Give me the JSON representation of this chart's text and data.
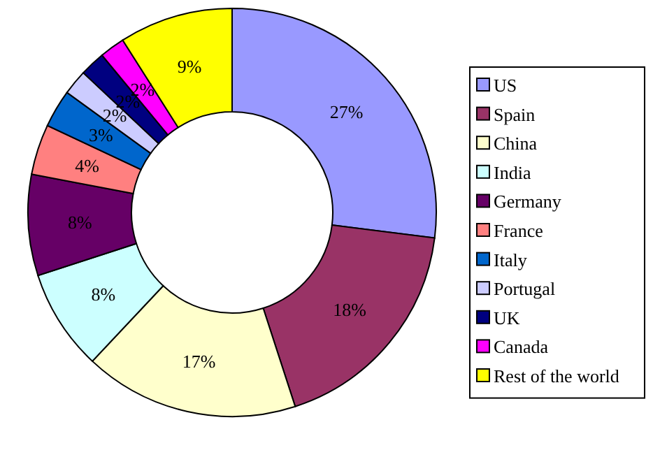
{
  "chart_data": {
    "type": "donut",
    "categories": [
      "US",
      "Spain",
      "China",
      "India",
      "Germany",
      "France",
      "Italy",
      "Portugal",
      "UK",
      "Canada",
      "Rest of the world"
    ],
    "values": [
      27,
      18,
      17,
      8,
      8,
      4,
      3,
      2,
      2,
      2,
      9
    ],
    "value_labels": [
      "27%",
      "18%",
      "17%",
      "8%",
      "8%",
      "4%",
      "3%",
      "2%",
      "2%",
      "2%",
      "9%"
    ],
    "colors": [
      "#9999ff",
      "#993366",
      "#ffffcc",
      "#ccffff",
      "#660066",
      "#ff8080",
      "#0066cc",
      "#ccccff",
      "#000080",
      "#ff00ff",
      "#ffff00"
    ],
    "legend": "right"
  }
}
